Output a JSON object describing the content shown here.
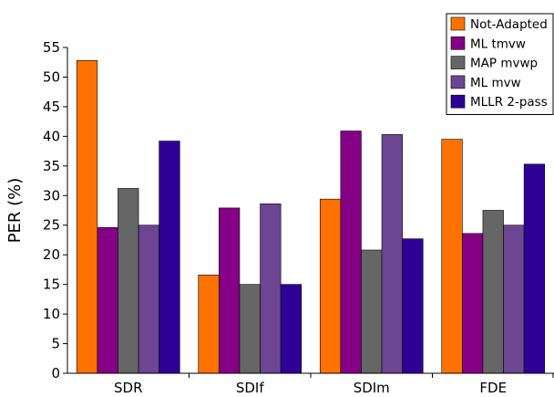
{
  "chart_data": {
    "type": "bar",
    "title": "",
    "xlabel": "",
    "ylabel": "PER (%)",
    "ylim": [
      0,
      55
    ],
    "yticks": [
      0,
      5,
      10,
      15,
      20,
      25,
      30,
      35,
      40,
      45,
      50,
      55
    ],
    "categories": [
      "SDR",
      "SDIf",
      "SDIm",
      "FDE"
    ],
    "grid": false,
    "legend_position": "top-right",
    "series": [
      {
        "name": "Not-Adapted",
        "color": "#ff7200",
        "values": [
          52.8,
          16.6,
          29.4,
          39.5
        ]
      },
      {
        "name": "ML tmvw",
        "color": "#850085",
        "values": [
          24.6,
          27.9,
          40.9,
          23.6
        ]
      },
      {
        "name": "MAP mvwp",
        "color": "#666666",
        "values": [
          31.2,
          15.0,
          20.8,
          27.5
        ]
      },
      {
        "name": "ML mvw",
        "color": "#6c4593",
        "values": [
          25.0,
          28.6,
          40.3,
          25.0
        ]
      },
      {
        "name": "MLLR 2-pass",
        "color": "#2f0096",
        "values": [
          39.2,
          15.0,
          22.7,
          35.3
        ]
      }
    ]
  }
}
